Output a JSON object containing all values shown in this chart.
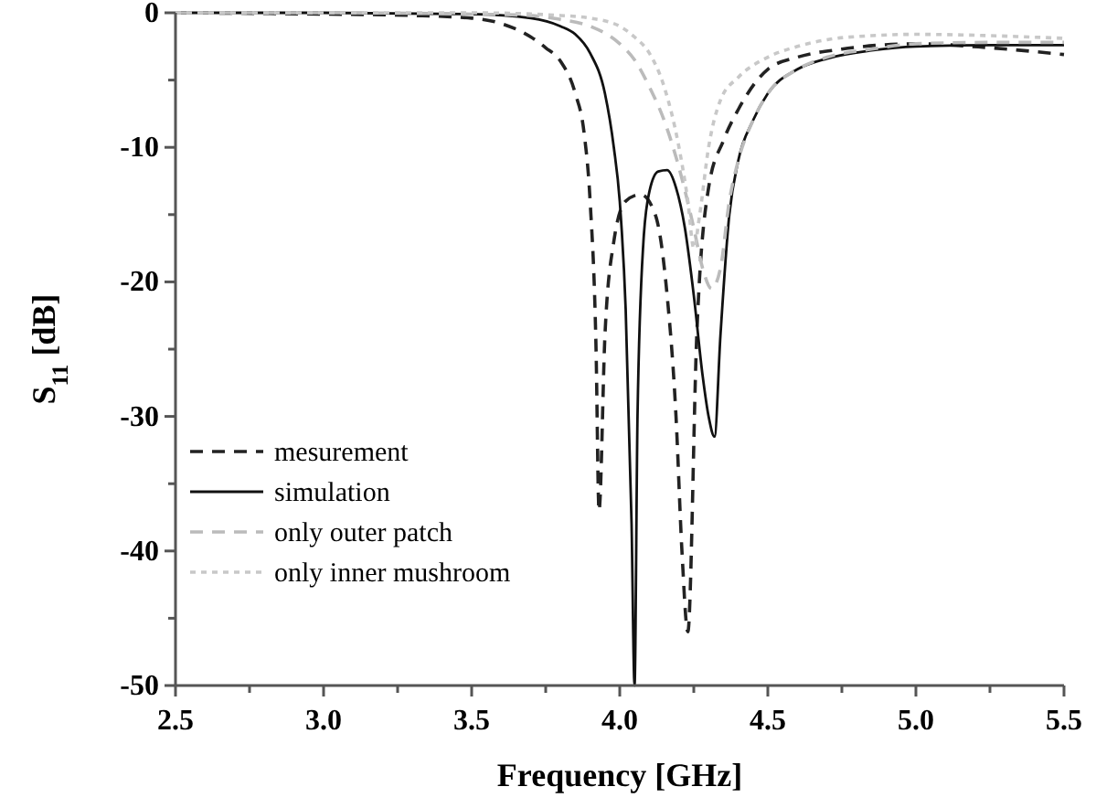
{
  "chart_data": {
    "type": "line",
    "xlabel": "Frequency [GHz]",
    "ylabel": "S$_{11}$ [dB]",
    "xlim": [
      2.5,
      5.5
    ],
    "ylim": [
      -50,
      0
    ],
    "xticks": [
      2.5,
      {
        "value": 2.75,
        "label": null
      },
      {
        "value": 3,
        "label": "3.0"
      },
      {
        "value": 3.25,
        "label": null
      },
      3.5,
      {
        "value": 3.75,
        "label": null
      },
      {
        "value": 4,
        "label": "4.0"
      },
      {
        "value": 4.25,
        "label": null
      },
      4.5,
      {
        "value": 4.75,
        "label": null
      },
      {
        "value": 5,
        "label": "5.0"
      },
      {
        "value": 5.25,
        "label": null
      },
      5.5
    ],
    "yticks": [
      -50,
      {
        "value": -45,
        "label": null
      },
      -40,
      {
        "value": -35,
        "label": null
      },
      -30,
      {
        "value": -25,
        "label": null
      },
      -20,
      {
        "value": -15,
        "label": null
      },
      -10,
      {
        "value": -5,
        "label": null
      },
      0
    ],
    "grid": false,
    "legend": "bottom left",
    "series": [
      {
        "name": "mesurement",
        "color": "#222222",
        "line_style": "dashed",
        "x": [
          2.5,
          3.0,
          3.3,
          3.5,
          3.6,
          3.7,
          3.75,
          3.8,
          3.85,
          3.88,
          3.9,
          3.92,
          3.93,
          3.95,
          3.98,
          4.02,
          4.07,
          4.12,
          4.16,
          4.19,
          4.21,
          4.23,
          4.26,
          4.3,
          4.35,
          4.4,
          4.5,
          4.6,
          4.75,
          5.0,
          5.25,
          5.5
        ],
        "values": [
          0,
          -0.1,
          -0.2,
          -0.4,
          -0.8,
          -1.8,
          -2.6,
          -3.6,
          -6,
          -9,
          -14,
          -25,
          -37,
          -24,
          -17,
          -14,
          -13.5,
          -15,
          -21,
          -30,
          -40,
          -46,
          -24,
          -13,
          -9.5,
          -7.2,
          -4.2,
          -3.3,
          -2.7,
          -2.3,
          -2.6,
          -3.1
        ]
      },
      {
        "name": "simulation",
        "color": "#111111",
        "line_style": "solid",
        "x": [
          2.5,
          3.0,
          3.5,
          3.7,
          3.8,
          3.85,
          3.9,
          3.95,
          3.98,
          4.0,
          4.02,
          4.04,
          4.05,
          4.06,
          4.08,
          4.1,
          4.13,
          4.16,
          4.19,
          4.22,
          4.25,
          4.28,
          4.3,
          4.32,
          4.34,
          4.37,
          4.4,
          4.45,
          4.5,
          4.6,
          4.7,
          4.85,
          5.0,
          5.25,
          5.5
        ],
        "values": [
          0,
          0,
          -0.1,
          -0.4,
          -1,
          -1.6,
          -3,
          -6,
          -10,
          -14,
          -22,
          -38,
          -50,
          -30,
          -17,
          -13.3,
          -11.8,
          -11.7,
          -13,
          -16,
          -21,
          -27,
          -30,
          -31.5,
          -24,
          -15,
          -11,
          -8,
          -6,
          -4.2,
          -3.4,
          -2.8,
          -2.5,
          -2.4,
          -2.4
        ]
      },
      {
        "name": "only outer patch",
        "color": "#bbbbbb",
        "line_style": "dashed",
        "x": [
          2.5,
          3.0,
          3.5,
          3.7,
          3.8,
          3.9,
          4.0,
          4.05,
          4.1,
          4.15,
          4.2,
          4.25,
          4.28,
          4.31,
          4.34,
          4.37,
          4.4,
          4.45,
          4.5,
          4.6,
          4.7,
          4.85,
          5.0,
          5.25,
          5.5
        ],
        "values": [
          0,
          0,
          -0.1,
          -0.2,
          -0.5,
          -1,
          -2.3,
          -3.5,
          -5.5,
          -8,
          -11.5,
          -16,
          -19,
          -20.5,
          -19,
          -14,
          -11,
          -8,
          -6,
          -4.2,
          -3.3,
          -2.7,
          -2.3,
          -2.2,
          -2.2
        ]
      },
      {
        "name": "only inner mushroom",
        "color": "#c8c8c8",
        "line_style": "dotted",
        "x": [
          2.5,
          3.0,
          3.5,
          3.8,
          3.9,
          4.0,
          4.05,
          4.1,
          4.15,
          4.2,
          4.23,
          4.25,
          4.27,
          4.3,
          4.34,
          4.4,
          4.5,
          4.6,
          4.7,
          4.85,
          5.0,
          5.25,
          5.5
        ],
        "values": [
          0,
          0,
          0,
          -0.2,
          -0.4,
          -1,
          -1.8,
          -3,
          -5.5,
          -10,
          -14,
          -17.5,
          -15,
          -10,
          -6.5,
          -4.8,
          -3.3,
          -2.5,
          -2,
          -1.7,
          -1.6,
          -1.7,
          -1.9
        ]
      }
    ]
  }
}
